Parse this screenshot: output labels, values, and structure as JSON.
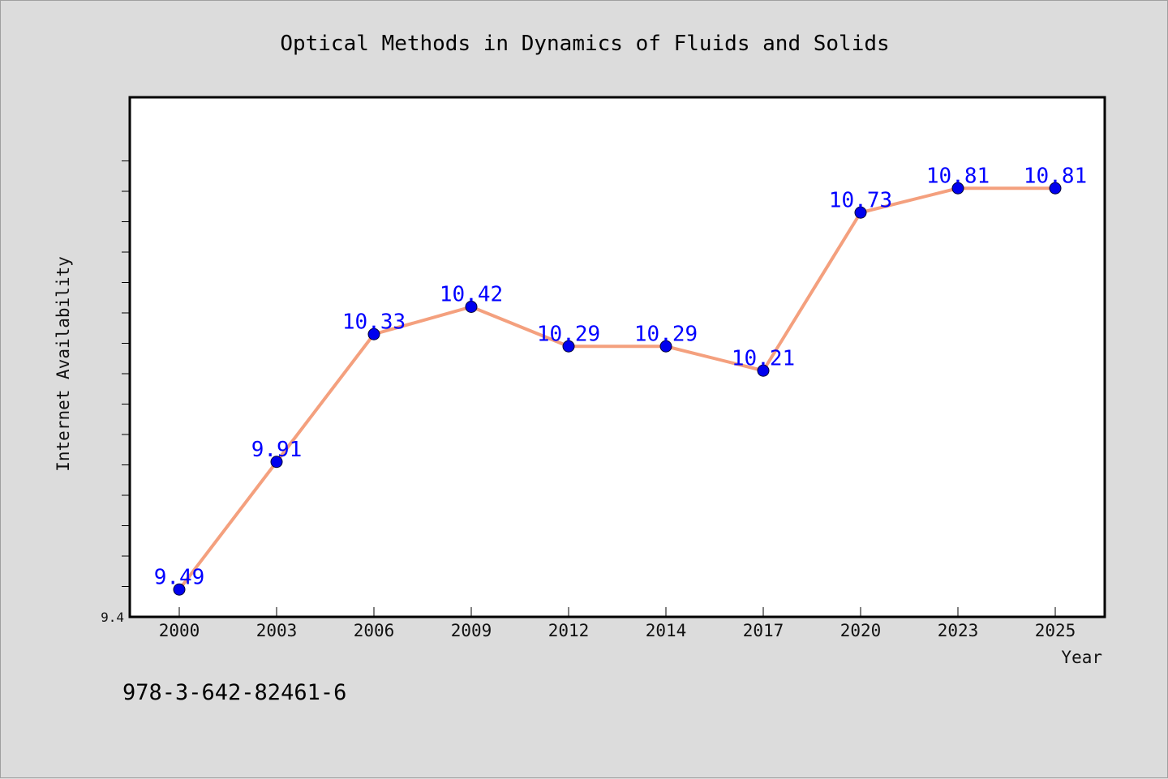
{
  "chart_data": {
    "type": "line",
    "title": "Optical Methods in Dynamics of Fluids and Solids",
    "xlabel": "Year",
    "ylabel": "Internet Availability",
    "categories": [
      "2000",
      "2003",
      "2006",
      "2009",
      "2012",
      "2014",
      "2017",
      "2020",
      "2023",
      "2025"
    ],
    "series": [
      {
        "values": [
          9.49,
          9.91,
          10.33,
          10.42,
          10.29,
          10.29,
          10.21,
          10.73,
          10.81,
          10.81
        ],
        "labels": [
          "9.49",
          "9.91",
          "10.33",
          "10.42",
          "10.29",
          "10.29",
          "10.21",
          "10.73",
          "10.81",
          "10.81"
        ],
        "line_color": "#f4a07e",
        "marker_color": "#0000ee"
      }
    ],
    "ylim": [
      9.4,
      11.0
    ],
    "yticks_labeled": [
      "9.4"
    ],
    "grid": false,
    "legend": "none"
  },
  "footer": {
    "isbn": "978-3-642-82461-6"
  }
}
